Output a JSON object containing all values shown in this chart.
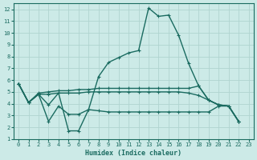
{
  "xlabel": "Humidex (Indice chaleur)",
  "background_color": "#cceae7",
  "grid_color": "#b0d4d0",
  "line_color": "#1a6b60",
  "xlim": [
    -0.5,
    23.5
  ],
  "ylim": [
    1,
    12.5
  ],
  "xticks": [
    0,
    1,
    2,
    3,
    4,
    5,
    6,
    7,
    8,
    9,
    10,
    11,
    12,
    13,
    14,
    15,
    16,
    17,
    18,
    19,
    20,
    21,
    22,
    23
  ],
  "yticks": [
    1,
    2,
    3,
    4,
    5,
    6,
    7,
    8,
    9,
    10,
    11,
    12
  ],
  "line1_x": [
    0,
    1,
    2,
    3,
    4,
    5,
    6,
    7,
    8,
    9,
    10,
    11,
    12,
    13,
    14,
    15,
    16,
    17,
    18,
    19,
    20,
    21,
    22
  ],
  "line1_y": [
    5.7,
    4.1,
    4.8,
    3.9,
    4.9,
    1.7,
    1.7,
    3.5,
    6.3,
    7.5,
    7.9,
    8.3,
    8.5,
    12.1,
    11.4,
    11.5,
    9.8,
    7.4,
    5.5,
    4.3,
    3.9,
    3.8,
    2.5
  ],
  "line2_x": [
    0,
    1,
    2,
    3,
    4,
    5,
    6,
    7,
    8,
    9,
    10,
    11,
    12,
    13,
    14,
    15,
    16,
    17,
    18,
    19,
    20,
    21,
    22
  ],
  "line2_y": [
    5.7,
    4.1,
    4.9,
    5.0,
    5.1,
    5.1,
    5.2,
    5.2,
    5.3,
    5.3,
    5.3,
    5.3,
    5.3,
    5.3,
    5.3,
    5.3,
    5.3,
    5.3,
    5.5,
    4.3,
    3.9,
    3.8,
    2.5
  ],
  "line3_x": [
    0,
    1,
    2,
    3,
    4,
    5,
    6,
    7,
    8,
    9,
    10,
    11,
    12,
    13,
    14,
    15,
    16,
    17,
    18,
    19,
    20,
    21,
    22
  ],
  "line3_y": [
    5.7,
    4.1,
    4.8,
    4.8,
    4.9,
    4.9,
    4.9,
    5.0,
    5.0,
    5.0,
    5.0,
    5.0,
    5.0,
    5.0,
    5.0,
    5.0,
    5.0,
    4.9,
    4.7,
    4.3,
    3.9,
    3.8,
    2.5
  ],
  "line4_x": [
    0,
    1,
    2,
    3,
    4,
    5,
    6,
    7,
    8,
    9,
    10,
    11,
    12,
    13,
    14,
    15,
    16,
    17,
    18,
    19,
    20,
    21,
    22
  ],
  "line4_y": [
    5.7,
    4.1,
    4.8,
    2.5,
    3.8,
    3.1,
    3.1,
    3.5,
    3.4,
    3.3,
    3.3,
    3.3,
    3.3,
    3.3,
    3.3,
    3.3,
    3.3,
    3.3,
    3.3,
    3.3,
    3.8,
    3.8,
    2.5
  ]
}
